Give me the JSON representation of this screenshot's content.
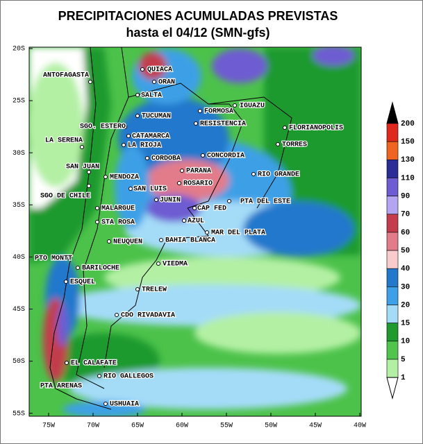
{
  "title": "PRECIPITACIONES ACUMULADAS PREVISTAS",
  "subtitle": "hasta el 04/12 (SMN-gfs)",
  "lat_ticks": [
    "20S",
    "25S",
    "30S",
    "35S",
    "40S",
    "45S",
    "50S",
    "55S"
  ],
  "lon_ticks": [
    "75W",
    "70W",
    "65W",
    "60W",
    "55W",
    "50W",
    "45W",
    "40W"
  ],
  "cities": [
    "ANTOFAGASTA",
    "QUIACA",
    "ORAN",
    "SALTA",
    "IGUAZU",
    "TUCUMAN",
    "FORMOSA",
    "RESISTENCIA",
    "FLORIANOPOLIS",
    "SGO. ESTERO",
    "CATAMARCA",
    "LA RIOJA",
    "LA SERENA",
    "TORRES",
    "CORDOBA",
    "CONCORDIA",
    "SAN JUAN",
    "PARANA",
    "RIO GRANDE",
    "MENDOZA",
    "SAN LUIS",
    "ROSARIO",
    "SGO DE CHILE",
    "JUNIN",
    "PTA DEL ESTE",
    "MALARGUE",
    "CAP FED",
    "STA ROSA",
    "AZUL",
    "MAR DEL PLATA",
    "NEUQUEN",
    "BAHIA BLANCA",
    "PTO MONTT",
    "VIEDMA",
    "BARILOCHE",
    "ESQUEL",
    "TRELEW",
    "CDO RIVADAVIA",
    "EL CALAFATE",
    "RIO GALLEGOS",
    "PTA ARENAS",
    "USHUAIA"
  ],
  "colorbar": {
    "levels": [
      200,
      150,
      130,
      110,
      90,
      70,
      60,
      50,
      40,
      30,
      20,
      15,
      10,
      5,
      1
    ],
    "colors": [
      "#000000",
      "#e0281e",
      "#f06422",
      "#2c2c98",
      "#6e5cd2",
      "#b4a4f2",
      "#c23c4c",
      "#e27c8a",
      "#f8cccc",
      "#2478cc",
      "#3ea0e6",
      "#a4dcf8",
      "#1e9a2e",
      "#50c44c",
      "#b4f0a4",
      "#ffffff"
    ]
  }
}
